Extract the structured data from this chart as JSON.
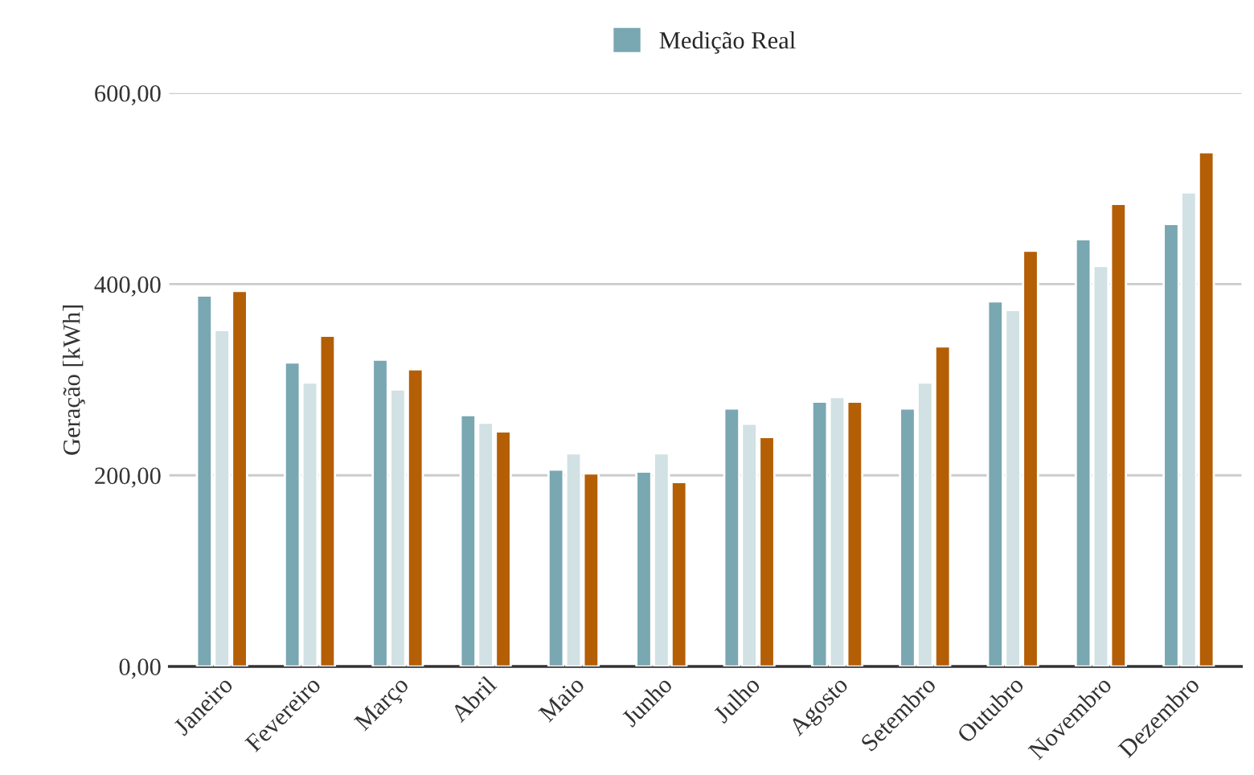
{
  "chart_data": {
    "type": "bar",
    "ylabel": "Geração [kWh]",
    "categories": [
      "Janeiro",
      "Fevereiro",
      "Março",
      "Abril",
      "Maio",
      "Junho",
      "Julho",
      "Agosto",
      "Setembro",
      "Outubro",
      "Novembro",
      "Dezembro"
    ],
    "series": [
      {
        "name": "Medição Real",
        "color": "#79a7b2",
        "values": [
          388,
          318,
          321,
          263,
          206,
          204,
          270,
          277,
          270,
          382,
          447,
          463
        ]
      },
      {
        "color": "#d1e1e4",
        "values": [
          352,
          297,
          290,
          255,
          223,
          223,
          254,
          282,
          297,
          373,
          419,
          496
        ]
      },
      {
        "color": "#b45f06",
        "values": [
          393,
          346,
          311,
          246,
          202,
          193,
          240,
          277,
          335,
          435,
          484,
          538
        ]
      }
    ],
    "ylim": [
      0,
      600
    ],
    "yticks": [
      {
        "value": 0,
        "label": "0,00"
      },
      {
        "value": 200,
        "label": "200,00"
      },
      {
        "value": 400,
        "label": "400,00"
      },
      {
        "value": 600,
        "label": "600,00"
      }
    ],
    "grid": "y",
    "legend": "top"
  }
}
